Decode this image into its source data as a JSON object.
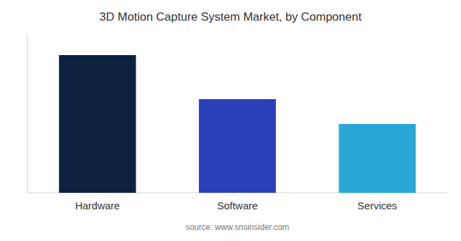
{
  "chart_data": {
    "type": "bar",
    "title": "3D Motion Capture System Market, by Component",
    "categories": [
      "Hardware",
      "Software",
      "Services"
    ],
    "values": [
      100,
      68,
      50
    ],
    "colors": [
      "#0d2240",
      "#2b3fba",
      "#29a8d8"
    ],
    "ylim": [
      0,
      115
    ],
    "tick_labels": "x",
    "grid": false,
    "annotation": "source: www.snsinsider.com"
  }
}
